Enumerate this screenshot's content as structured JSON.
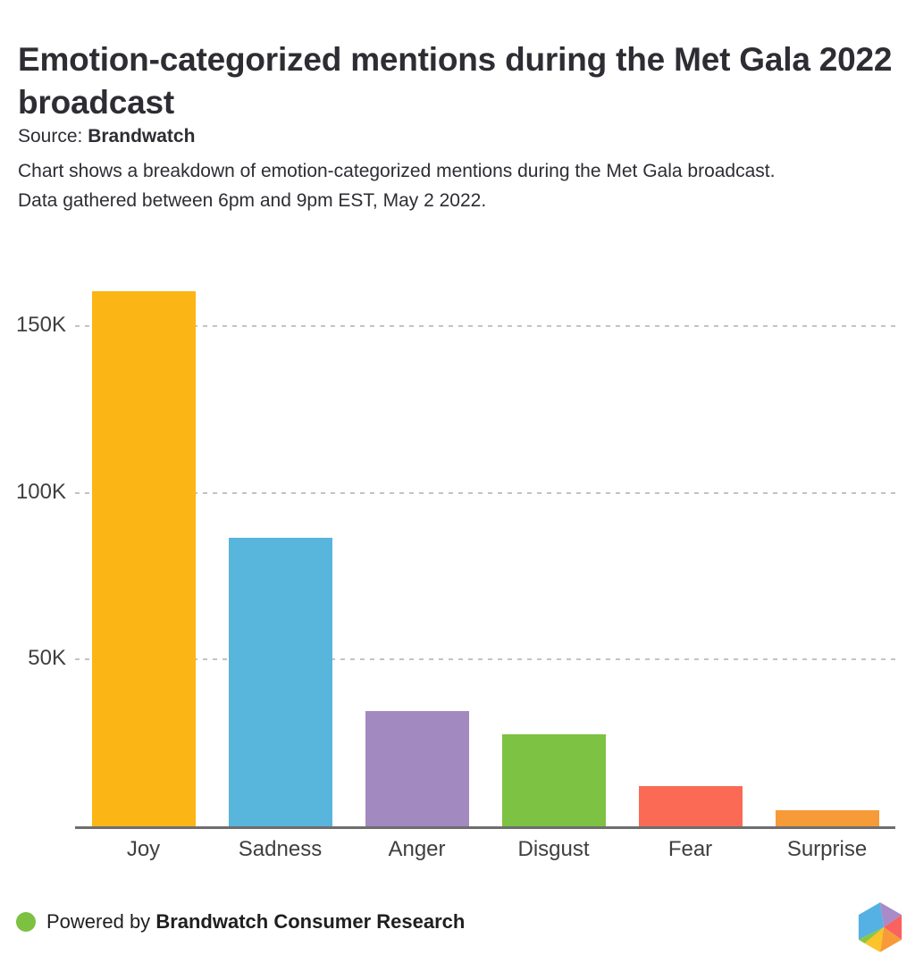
{
  "header": {
    "title": "Emotion-categorized mentions during the Met Gala 2022 broadcast",
    "source_label": "Source:",
    "source_value": "Brandwatch",
    "description_line1": "Chart shows a breakdown of emotion-categorized mentions during the Met Gala broadcast.",
    "description_line2": "Data gathered between 6pm and 9pm EST, May 2 2022."
  },
  "chart_data": {
    "type": "bar",
    "title": "Emotion-categorized mentions during the Met Gala 2022 broadcast",
    "categories": [
      "Joy",
      "Sadness",
      "Anger",
      "Disgust",
      "Fear",
      "Surprise"
    ],
    "values": [
      160500,
      86500,
      34600,
      27600,
      12100,
      4900
    ],
    "colors": [
      "#FBB615",
      "#58B5DC",
      "#A289BF",
      "#7DC242",
      "#FA6A55",
      "#F79A38"
    ],
    "xlabel": "",
    "ylabel": "",
    "ylim": [
      0,
      167500
    ],
    "yticks": [
      {
        "value": 50000,
        "label": "50K"
      },
      {
        "value": 100000,
        "label": "100K"
      },
      {
        "value": 150000,
        "label": "150K"
      }
    ],
    "grid": "horizontal-dashed",
    "gridline_color": "#c3c3c3",
    "axis_line_color": "#6e6e6e",
    "legend": "none"
  },
  "footer": {
    "powered_by_label": "Powered by",
    "brand_name": "Brandwatch Consumer Research",
    "bullet_color": "#7CC142",
    "logo_name": "brandwatch-hexagon-logo",
    "logo_colors": {
      "blue": "#55B1E3",
      "purple": "#A98BC8",
      "red": "#F9625F",
      "orange": "#F79A38",
      "yellow": "#FCC32B",
      "green": "#8CC63F"
    }
  }
}
